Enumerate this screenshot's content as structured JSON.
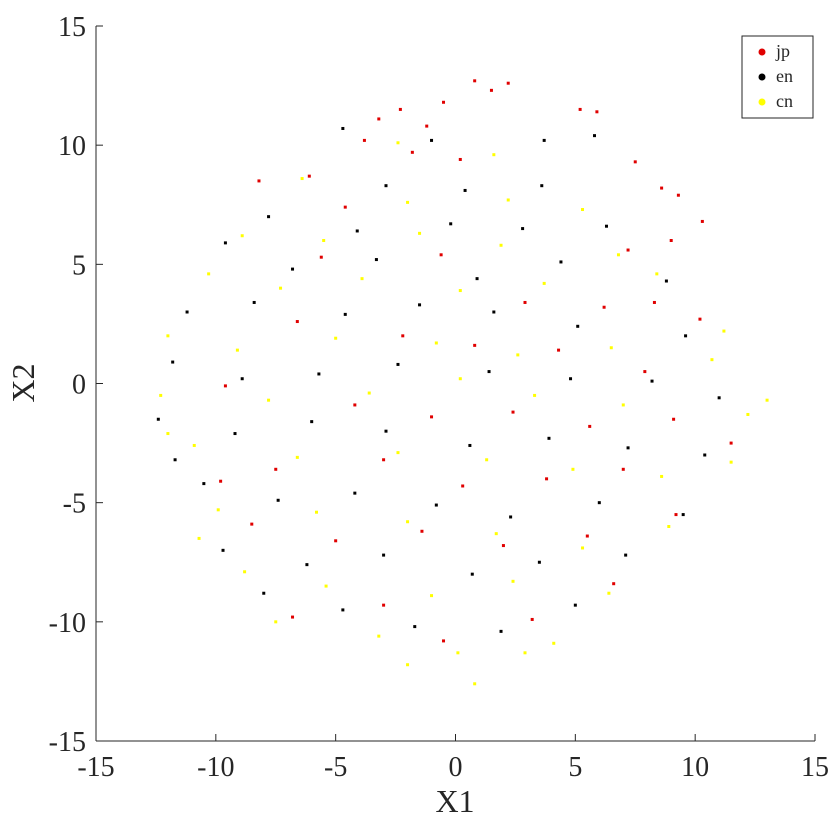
{
  "chart_data": {
    "type": "scatter",
    "xlabel": "X1",
    "ylabel": "X2",
    "xlim": [
      -15,
      15
    ],
    "ylim": [
      -15,
      15
    ],
    "xticks": [
      -15,
      -10,
      -5,
      0,
      5,
      10,
      15
    ],
    "yticks": [
      15,
      10,
      5,
      0,
      -5,
      -10,
      -15
    ],
    "grid": false,
    "box": false,
    "legend": {
      "position": "top-right",
      "entries": [
        "jp",
        "en",
        "cn"
      ]
    },
    "series": [
      {
        "name": "jp",
        "color": "#e00000",
        "sample_points": [
          [
            0.8,
            12.7
          ],
          [
            1.5,
            12.3
          ],
          [
            2.2,
            12.6
          ],
          [
            -0.5,
            11.8
          ],
          [
            -3.2,
            11.1
          ],
          [
            -2.3,
            11.5
          ],
          [
            -1.2,
            10.8
          ],
          [
            5.2,
            11.5
          ],
          [
            5.9,
            11.4
          ],
          [
            -1.8,
            9.7
          ],
          [
            0.2,
            9.4
          ],
          [
            -3.8,
            10.2
          ],
          [
            7.5,
            9.3
          ],
          [
            8.6,
            8.2
          ],
          [
            9.3,
            7.9
          ],
          [
            -8.2,
            8.5
          ],
          [
            -6.1,
            8.7
          ],
          [
            -4.6,
            7.4
          ],
          [
            10.3,
            6.8
          ],
          [
            9.0,
            6.0
          ],
          [
            7.2,
            5.6
          ],
          [
            -5.6,
            5.3
          ],
          [
            -0.6,
            5.4
          ],
          [
            2.9,
            3.4
          ],
          [
            6.2,
            3.2
          ],
          [
            8.3,
            3.4
          ],
          [
            10.2,
            2.7
          ],
          [
            -6.6,
            2.6
          ],
          [
            -2.2,
            2.0
          ],
          [
            0.8,
            1.6
          ],
          [
            4.3,
            1.4
          ],
          [
            7.9,
            0.5
          ],
          [
            -9.6,
            -0.1
          ],
          [
            -4.2,
            -0.9
          ],
          [
            -1.0,
            -1.4
          ],
          [
            2.4,
            -1.2
          ],
          [
            5.6,
            -1.8
          ],
          [
            9.1,
            -1.5
          ],
          [
            11.5,
            -2.5
          ],
          [
            -7.5,
            -3.6
          ],
          [
            -3.0,
            -3.2
          ],
          [
            0.3,
            -4.3
          ],
          [
            3.8,
            -4.0
          ],
          [
            7.0,
            -3.6
          ],
          [
            9.2,
            -5.5
          ],
          [
            -8.5,
            -5.9
          ],
          [
            -5.0,
            -6.6
          ],
          [
            -1.4,
            -6.2
          ],
          [
            2.0,
            -6.8
          ],
          [
            5.5,
            -6.4
          ],
          [
            -6.8,
            -9.8
          ],
          [
            -3.0,
            -9.3
          ],
          [
            -0.5,
            -10.8
          ],
          [
            3.2,
            -9.9
          ],
          [
            6.6,
            -8.4
          ],
          [
            -9.8,
            -4.1
          ]
        ]
      },
      {
        "name": "en",
        "color": "#000000",
        "sample_points": [
          [
            -4.7,
            10.7
          ],
          [
            -1.0,
            10.2
          ],
          [
            3.7,
            10.2
          ],
          [
            5.8,
            10.4
          ],
          [
            -2.9,
            8.3
          ],
          [
            0.4,
            8.1
          ],
          [
            3.6,
            8.3
          ],
          [
            -7.8,
            7.0
          ],
          [
            -4.1,
            6.4
          ],
          [
            -0.2,
            6.7
          ],
          [
            2.8,
            6.5
          ],
          [
            6.3,
            6.6
          ],
          [
            -9.6,
            5.9
          ],
          [
            -6.8,
            4.8
          ],
          [
            -3.3,
            5.2
          ],
          [
            0.9,
            4.4
          ],
          [
            4.4,
            5.1
          ],
          [
            8.8,
            4.3
          ],
          [
            -11.2,
            3.0
          ],
          [
            -8.4,
            3.4
          ],
          [
            -4.6,
            2.9
          ],
          [
            -1.5,
            3.3
          ],
          [
            1.6,
            3.0
          ],
          [
            5.1,
            2.4
          ],
          [
            9.6,
            2.0
          ],
          [
            -11.8,
            0.9
          ],
          [
            -8.9,
            0.2
          ],
          [
            -5.7,
            0.4
          ],
          [
            -2.4,
            0.8
          ],
          [
            1.4,
            0.5
          ],
          [
            4.8,
            0.2
          ],
          [
            8.2,
            0.1
          ],
          [
            11.0,
            -0.6
          ],
          [
            -12.4,
            -1.5
          ],
          [
            -9.2,
            -2.1
          ],
          [
            -6.0,
            -1.6
          ],
          [
            -2.9,
            -2.0
          ],
          [
            0.6,
            -2.6
          ],
          [
            3.9,
            -2.3
          ],
          [
            7.2,
            -2.7
          ],
          [
            10.4,
            -3.0
          ],
          [
            -10.5,
            -4.2
          ],
          [
            -7.4,
            -4.9
          ],
          [
            -4.2,
            -4.6
          ],
          [
            -0.8,
            -5.1
          ],
          [
            2.3,
            -5.6
          ],
          [
            6.0,
            -5.0
          ],
          [
            9.5,
            -5.5
          ],
          [
            -9.7,
            -7.0
          ],
          [
            -6.2,
            -7.6
          ],
          [
            -3.0,
            -7.2
          ],
          [
            0.7,
            -8.0
          ],
          [
            3.5,
            -7.5
          ],
          [
            7.1,
            -7.2
          ],
          [
            -8.0,
            -8.8
          ],
          [
            -4.7,
            -9.5
          ],
          [
            -1.7,
            -10.2
          ],
          [
            1.9,
            -10.4
          ],
          [
            5.0,
            -9.3
          ],
          [
            -11.7,
            -3.2
          ]
        ]
      },
      {
        "name": "cn",
        "color": "#ffff00",
        "sample_points": [
          [
            -2.4,
            10.1
          ],
          [
            1.6,
            9.6
          ],
          [
            -6.4,
            8.6
          ],
          [
            -2.0,
            7.6
          ],
          [
            2.2,
            7.7
          ],
          [
            5.3,
            7.3
          ],
          [
            -8.9,
            6.2
          ],
          [
            -5.5,
            6.0
          ],
          [
            -1.5,
            6.3
          ],
          [
            1.9,
            5.8
          ],
          [
            6.8,
            5.4
          ],
          [
            -10.3,
            4.6
          ],
          [
            -7.3,
            4.0
          ],
          [
            -3.9,
            4.4
          ],
          [
            0.2,
            3.9
          ],
          [
            3.7,
            4.2
          ],
          [
            8.4,
            4.6
          ],
          [
            11.2,
            2.2
          ],
          [
            -12.0,
            2.0
          ],
          [
            -9.1,
            1.4
          ],
          [
            -5.0,
            1.9
          ],
          [
            -0.8,
            1.7
          ],
          [
            2.6,
            1.2
          ],
          [
            6.5,
            1.5
          ],
          [
            10.7,
            1.0
          ],
          [
            -12.3,
            -0.5
          ],
          [
            -7.8,
            -0.7
          ],
          [
            -3.6,
            -0.4
          ],
          [
            0.2,
            0.2
          ],
          [
            3.3,
            -0.5
          ],
          [
            7.0,
            -0.9
          ],
          [
            12.2,
            -1.3
          ],
          [
            13.0,
            -0.7
          ],
          [
            -10.9,
            -2.6
          ],
          [
            -6.6,
            -3.1
          ],
          [
            -2.4,
            -2.9
          ],
          [
            1.3,
            -3.2
          ],
          [
            4.9,
            -3.6
          ],
          [
            8.6,
            -3.9
          ],
          [
            11.5,
            -3.3
          ],
          [
            -9.9,
            -5.3
          ],
          [
            -5.8,
            -5.4
          ],
          [
            -2.0,
            -5.8
          ],
          [
            1.7,
            -6.3
          ],
          [
            5.3,
            -6.9
          ],
          [
            8.9,
            -6.0
          ],
          [
            -8.8,
            -7.9
          ],
          [
            -5.4,
            -8.5
          ],
          [
            -1.0,
            -8.9
          ],
          [
            2.4,
            -8.3
          ],
          [
            6.4,
            -8.8
          ],
          [
            -7.5,
            -10.0
          ],
          [
            -3.2,
            -10.6
          ],
          [
            0.1,
            -11.3
          ],
          [
            2.9,
            -11.3
          ],
          [
            4.1,
            -10.9
          ],
          [
            -2.0,
            -11.8
          ],
          [
            0.8,
            -12.6
          ],
          [
            -10.7,
            -6.5
          ],
          [
            -12.0,
            -2.1
          ]
        ]
      }
    ]
  }
}
